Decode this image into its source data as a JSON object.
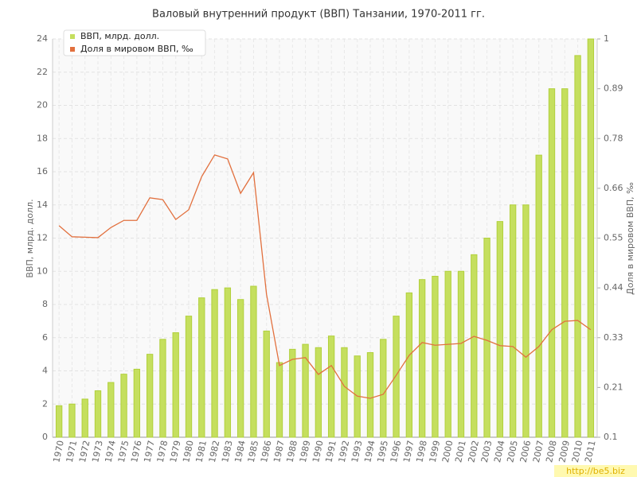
{
  "chart_data": {
    "type": "bar_line",
    "title": "Валовый внутренний продукт (ВВП) Танзании, 1970-2011 гг.",
    "y_label": "ВВП, млрд. долл.",
    "y2_label": "Доля в мировом ВВП, ‰",
    "watermark": "http://be5.biz",
    "categories": [
      "1970",
      "1971",
      "1972",
      "1973",
      "1974",
      "1975",
      "1976",
      "1977",
      "1978",
      "1979",
      "1980",
      "1981",
      "1982",
      "1983",
      "1984",
      "1985",
      "1986",
      "1987",
      "1988",
      "1989",
      "1990",
      "1991",
      "1992",
      "1993",
      "1994",
      "1995",
      "1996",
      "1997",
      "1998",
      "1999",
      "2000",
      "2001",
      "2002",
      "2003",
      "2004",
      "2005",
      "2006",
      "2007",
      "2008",
      "2009",
      "2010",
      "2011"
    ],
    "series": [
      {
        "name": "ВВП, млрд. долл.",
        "type": "bar",
        "color": "#c5df5e",
        "values": [
          1.9,
          2.0,
          2.3,
          2.8,
          3.3,
          3.8,
          4.1,
          5.0,
          5.9,
          6.3,
          7.3,
          8.4,
          8.9,
          9.0,
          8.3,
          9.1,
          6.4,
          4.5,
          5.3,
          5.6,
          5.4,
          6.1,
          5.4,
          4.9,
          5.1,
          5.9,
          7.3,
          8.7,
          9.5,
          9.7,
          10.0,
          10.0,
          11.0,
          12.0,
          13.0,
          14.0,
          14.0,
          17.0,
          21.0,
          21.0,
          23.0,
          24.0
        ]
      },
      {
        "name": "Доля в мировом ВВП, ‰",
        "type": "line",
        "axis": "y2",
        "color": "#e2703e",
        "values": [
          0.578,
          0.553,
          0.552,
          0.551,
          0.574,
          0.59,
          0.59,
          0.641,
          0.637,
          0.592,
          0.614,
          0.689,
          0.738,
          0.729,
          0.651,
          0.698,
          0.423,
          0.262,
          0.276,
          0.28,
          0.242,
          0.262,
          0.215,
          0.193,
          0.188,
          0.197,
          0.24,
          0.285,
          0.314,
          0.308,
          0.31,
          0.312,
          0.328,
          0.319,
          0.307,
          0.305,
          0.281,
          0.305,
          0.343,
          0.362,
          0.364,
          0.343
        ]
      }
    ],
    "ylim": [
      0,
      24
    ],
    "yticks": [
      0,
      2,
      4,
      6,
      8,
      10,
      12,
      14,
      16,
      18,
      20,
      22,
      24
    ],
    "y2lim": [
      0.1,
      1
    ],
    "y2ticks": [
      0.1,
      {
        "value": 0.2125,
        "label": "0.21"
      },
      {
        "value": 0.325,
        "label": "0.33"
      },
      {
        "value": 0.4375,
        "label": "0.44"
      },
      0.55,
      {
        "value": 0.6625,
        "label": "0.66"
      },
      {
        "value": 0.775,
        "label": "0.78"
      },
      {
        "value": 0.8875,
        "label": "0.89"
      },
      1
    ],
    "grid": true,
    "legend": "top-left"
  }
}
